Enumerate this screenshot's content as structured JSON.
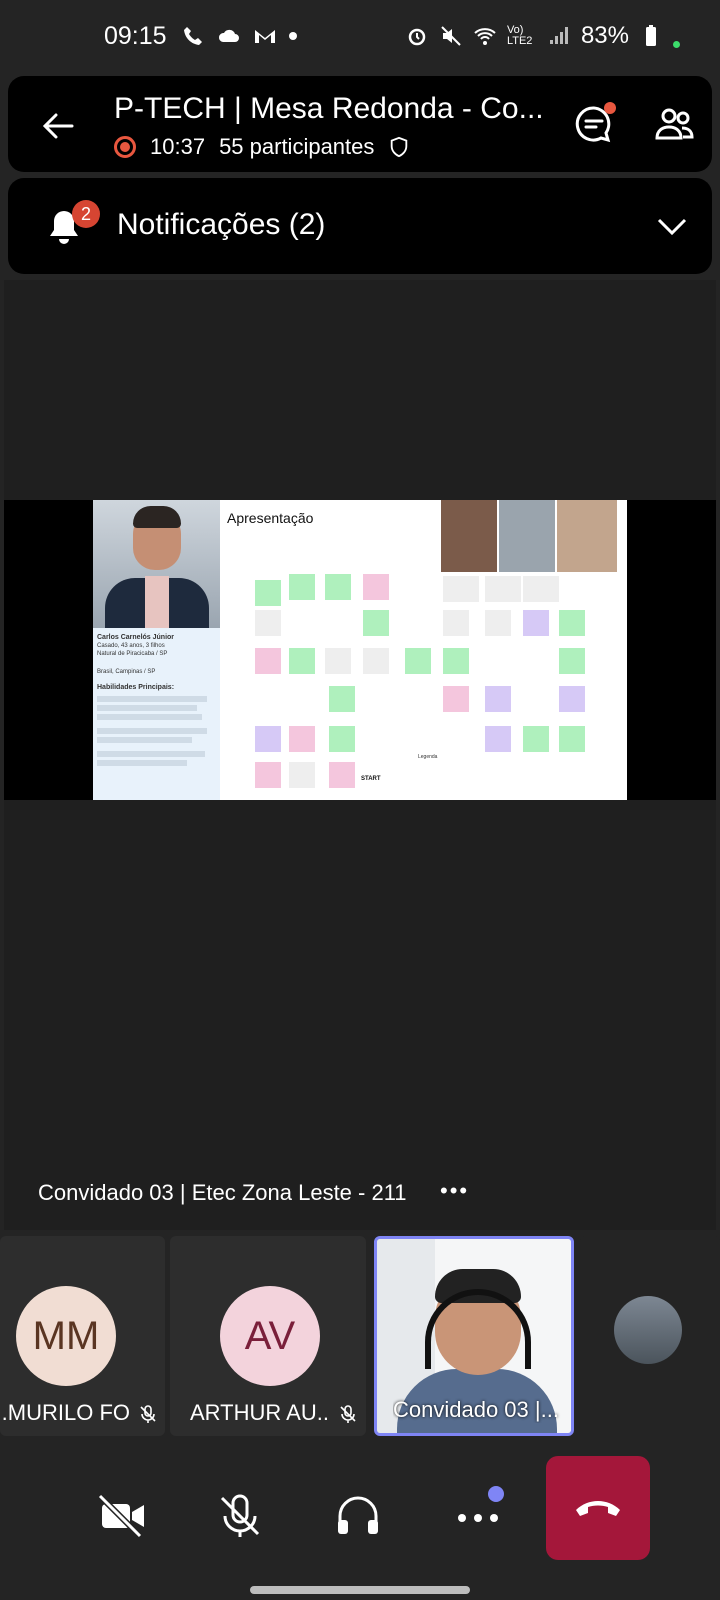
{
  "status_bar": {
    "time": "09:15",
    "left_icons": [
      "phone-icon",
      "cloud-icon",
      "gmail-icon",
      "dot-icon"
    ],
    "right_icons": [
      "alarm-icon",
      "mute-icon",
      "wifi-icon",
      "volte-icon",
      "signal-icon",
      "battery-icon"
    ],
    "network": "Vo) LTE2",
    "battery": "83%"
  },
  "call_header": {
    "title": "P-TECH | Mesa Redonda - Co...",
    "duration": "10:37",
    "participants": "55 participantes"
  },
  "notifications": {
    "label": "Notificações (2)",
    "count": "2"
  },
  "slide": {
    "title": "Apresentação",
    "bio_name": "Carlos Carnelós Júnior",
    "bio_details": "Casado, 43 anos, 3 filhos",
    "bio_origin": "Natural de Piracicaba / SP",
    "bio_location": "Brasil, Campinas / SP",
    "bio_skills_title": "Habilidades Principais:",
    "legend": "Legenda",
    "start": "START"
  },
  "shared_screen_owner": "Convidado 03 | Etec Zona Leste - 211",
  "participants": [
    {
      "initials": "MM",
      "name": "MURILO FO...",
      "muted": true
    },
    {
      "initials": "AV",
      "name": "ARTHUR AU...",
      "muted": true
    },
    {
      "initials": "",
      "name": "Convidado 03 |...",
      "muted": false
    }
  ],
  "colors": {
    "accent": "#7f85f5",
    "hangup": "#a4173a",
    "alert": "#d64532"
  }
}
